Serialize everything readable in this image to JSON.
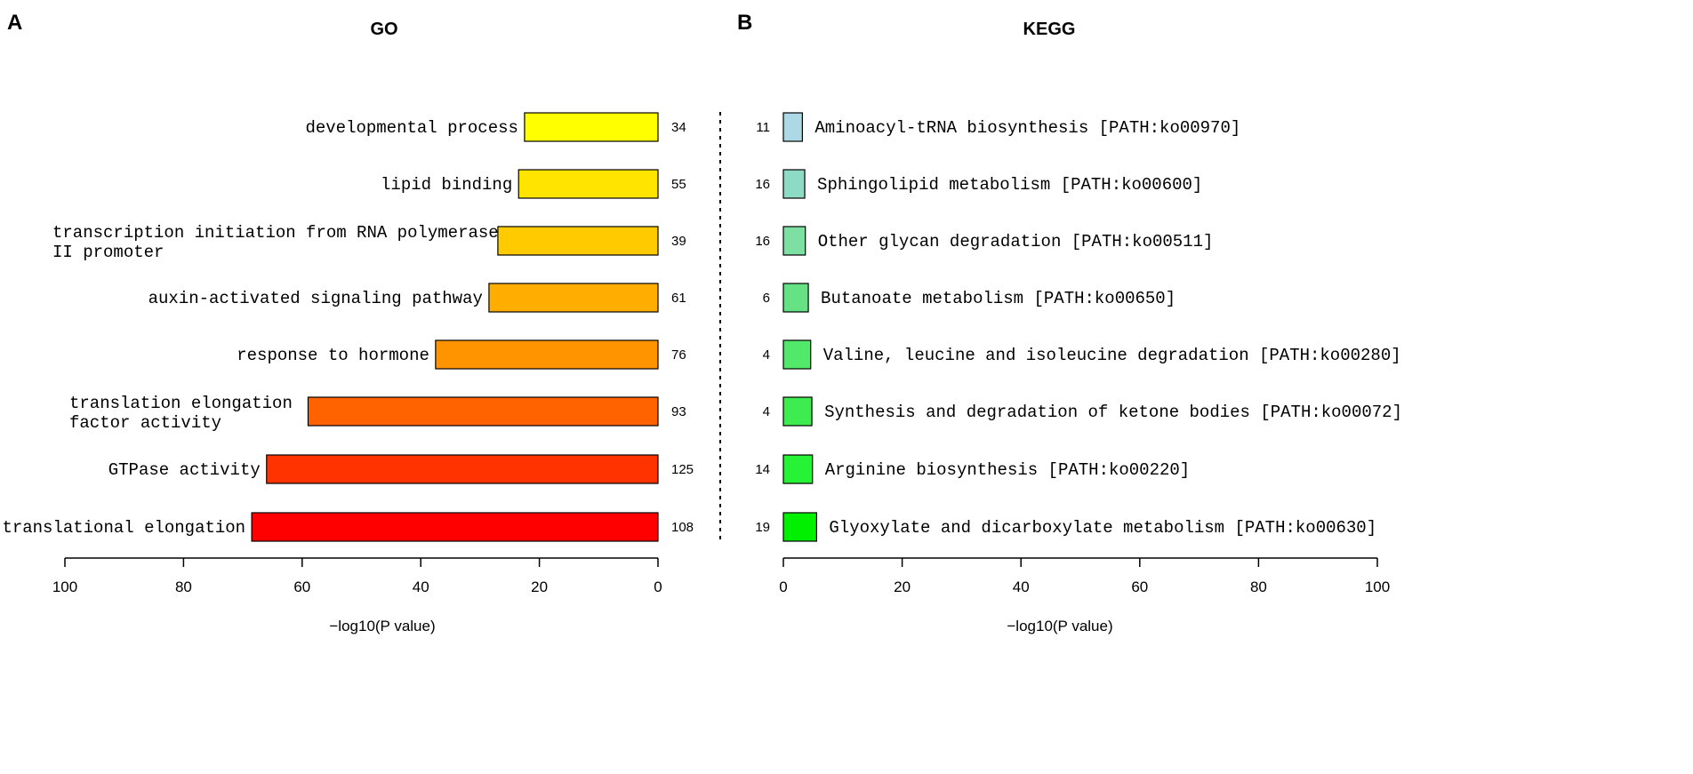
{
  "chart_data": [
    {
      "panel": "A",
      "title": "GO",
      "type": "bar",
      "orientation": "horizontal",
      "direction": "right-to-left",
      "xlabel": "−log10(P value)",
      "xlim": [
        0,
        100
      ],
      "ticks": [
        100,
        80,
        60,
        40,
        20,
        0
      ],
      "bars": [
        {
          "label": [
            "developmental process"
          ],
          "value": 22.5,
          "count": "34",
          "color": "#FFFF00"
        },
        {
          "label": [
            "lipid binding"
          ],
          "value": 23.5,
          "count": "55",
          "color": "#FFE400"
        },
        {
          "label": [
            "transcription initiation from RNA polymerase",
            "II promoter"
          ],
          "value": 27,
          "count": "39",
          "color": "#FFCA00"
        },
        {
          "label": [
            "auxin-activated signaling pathway"
          ],
          "value": 28.5,
          "count": "61",
          "color": "#FFAE00"
        },
        {
          "label": [
            "response to hormone"
          ],
          "value": 37.5,
          "count": "76",
          "color": "#FF9300"
        },
        {
          "label": [
            "translation elongation",
            "factor activity"
          ],
          "value": 59,
          "count": "93",
          "color": "#FF6300"
        },
        {
          "label": [
            "GTPase activity"
          ],
          "value": 66,
          "count": "125",
          "color": "#FF3300"
        },
        {
          "label": [
            "translational elongation"
          ],
          "value": 68.5,
          "count": "108",
          "color": "#FF0000"
        }
      ]
    },
    {
      "panel": "B",
      "title": "KEGG",
      "type": "bar",
      "orientation": "horizontal",
      "direction": "left-to-right",
      "xlabel": "−log10(P value)",
      "xlim": [
        0,
        100
      ],
      "ticks": [
        0,
        20,
        40,
        60,
        80,
        100
      ],
      "bars": [
        {
          "label": "Aminoacyl-tRNA biosynthesis [PATH:ko00970]",
          "value": 3.2,
          "count": "11",
          "color": "#ADD8E6"
        },
        {
          "label": "Sphingolipid metabolism [PATH:ko00600]",
          "value": 3.6,
          "count": "16",
          "color": "#8DDBC4"
        },
        {
          "label": "Other glycan degradation [PATH:ko00511]",
          "value": 3.7,
          "count": "16",
          "color": "#7DE0A2"
        },
        {
          "label": "Butanoate metabolism [PATH:ko00650]",
          "value": 4.2,
          "count": "6",
          "color": "#66E284"
        },
        {
          "label": "Valine, leucine and isoleucine degradation [PATH:ko00280]",
          "value": 4.6,
          "count": "4",
          "color": "#52E86A"
        },
        {
          "label": "Synthesis and degradation of ketone bodies [PATH:ko00072]",
          "value": 4.8,
          "count": "4",
          "color": "#3EEC50"
        },
        {
          "label": "Arginine biosynthesis [PATH:ko00220]",
          "value": 4.9,
          "count": "14",
          "color": "#26F236"
        },
        {
          "label": "Glyoxylate and dicarboxylate metabolism [PATH:ko00630]",
          "value": 5.6,
          "count": "19",
          "color": "#00F000"
        }
      ]
    }
  ]
}
